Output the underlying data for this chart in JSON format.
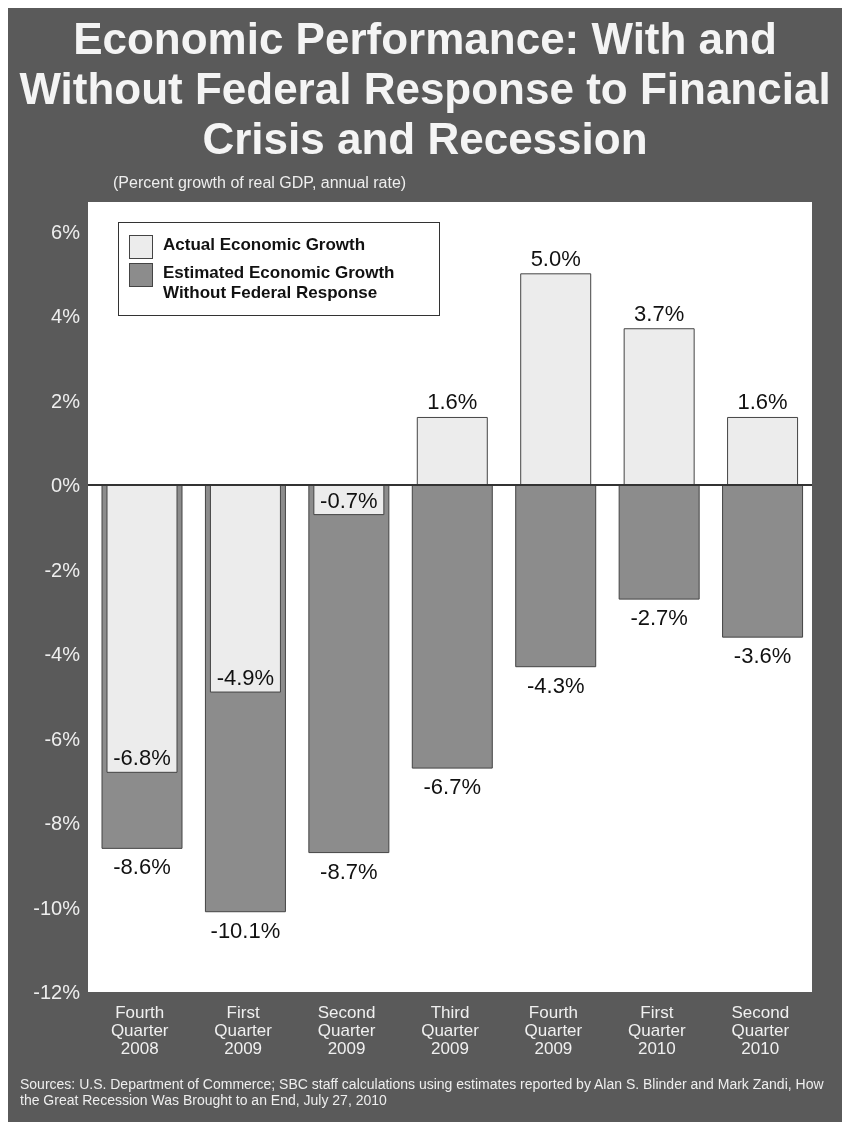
{
  "chart_data": {
    "type": "bar",
    "title": "Economic Performance: With and Without Federal Response to Financial Crisis and Recession",
    "subtitle": "(Percent growth of real GDP, annual rate)",
    "categories": [
      "Fourth Quarter 2008",
      "First Quarter 2009",
      "Second Quarter 2009",
      "Third Quarter 2009",
      "Fourth Quarter 2009",
      "First Quarter 2010",
      "Second Quarter 2010"
    ],
    "series": [
      {
        "name": "Estimated Economic Growth Without Federal Response",
        "color": "#8c8c8c",
        "values": [
          -8.6,
          -10.1,
          -8.7,
          -6.7,
          -4.3,
          -2.7,
          -3.6
        ],
        "value_labels": [
          "-8.6%",
          "-10.1%",
          "-8.7%",
          "-6.7%",
          "-4.3%",
          "-2.7%",
          "-3.6%"
        ]
      },
      {
        "name": "Actual Economic Growth",
        "color": "#ececec",
        "values": [
          -6.8,
          -4.9,
          -0.7,
          1.6,
          5.0,
          3.7,
          1.6
        ],
        "value_labels": [
          "-6.8%",
          "-4.9%",
          "-0.7%",
          "1.6%",
          "5.0%",
          "3.7%",
          "1.6%"
        ]
      }
    ],
    "ylim": [
      -12,
      6.7
    ],
    "yticks": [
      {
        "value": -12,
        "label": "-12%"
      },
      {
        "value": -10,
        "label": "-10%"
      },
      {
        "value": -8,
        "label": "-8%"
      },
      {
        "value": -6,
        "label": "-6%"
      },
      {
        "value": -4,
        "label": "-4%"
      },
      {
        "value": -2,
        "label": "-2%"
      },
      {
        "value": 0,
        "label": "0%"
      },
      {
        "value": 2,
        "label": "2%"
      },
      {
        "value": 4,
        "label": "4%"
      },
      {
        "value": 6,
        "label": "6%"
      }
    ],
    "ref_lines": [
      {
        "axis": "y",
        "value": 0,
        "color": "#333333"
      }
    ],
    "legend": "top left",
    "grid": false,
    "annotations": [
      "Sources: U.S. Department of Commerce; SBC staff calculations using estimates reported by Alan S. Blinder and Mark Zandi, How the Great Recession Was Brought to an End, July 27, 2010"
    ]
  }
}
